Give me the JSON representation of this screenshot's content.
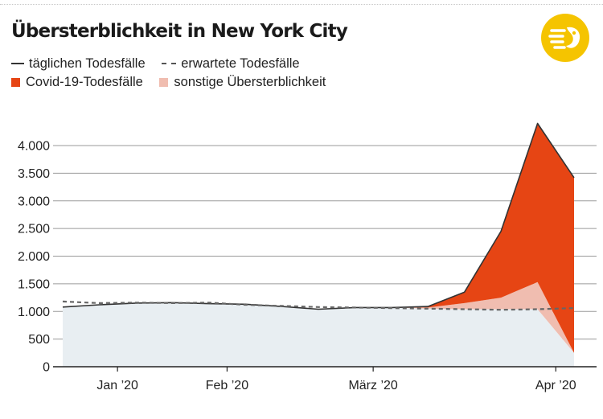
{
  "title": "Übersterblichkeit in New York City",
  "legend": {
    "actual_label": "täglichen Todesfälle",
    "expected_label": "erwartete Todesfälle",
    "covid_label": "Covid-19-Todesfälle",
    "other_label": "sonstige Übersterblichkeit"
  },
  "logo_icon": "publisher-logo-icon",
  "colors": {
    "covid": "#e64514",
    "other": "#f0bdb0",
    "base": "#e8eef2",
    "actual_line": "#333333",
    "expected_line": "#666666",
    "logo": "#f5c400"
  },
  "chart_data": {
    "type": "area",
    "title": "Übersterblichkeit in New York City",
    "xlabel": "",
    "ylabel": "",
    "ylim": [
      0,
      4000
    ],
    "y_ticks": [
      0,
      500,
      1000,
      1500,
      2000,
      2500,
      3000,
      3500,
      4000
    ],
    "y_tick_labels": [
      "0",
      "500",
      "1.000",
      "1.500",
      "2.000",
      "2.500",
      "3.000",
      "3.500",
      "4.000"
    ],
    "x_tick_labels": [
      "Jan ’20",
      "Feb ’20",
      "März ’20",
      "Apr ’20"
    ],
    "x_tick_positions": [
      1.5,
      4.5,
      8.5,
      13.5
    ],
    "grid": "horizontal",
    "x": [
      0,
      1,
      2,
      3,
      4,
      5,
      6,
      7,
      8,
      9,
      10,
      11,
      12,
      13,
      14
    ],
    "series": [
      {
        "name": "täglichen Todesfälle",
        "values": [
          1080,
          1120,
          1150,
          1160,
          1140,
          1130,
          1090,
          1040,
          1070,
          1070,
          1090,
          1350,
          2450,
          4400,
          3420
        ]
      },
      {
        "name": "erwartete Todesfälle",
        "values": [
          1180,
          1150,
          1160,
          1150,
          1160,
          1120,
          1100,
          1080,
          1070,
          1060,
          1050,
          1040,
          1030,
          1040,
          1060
        ]
      },
      {
        "name": "Covid-19-Todesfälle",
        "values": [
          0,
          0,
          0,
          0,
          0,
          0,
          0,
          0,
          0,
          0,
          20,
          200,
          1200,
          2870,
          3170
        ]
      },
      {
        "name": "sonstige Übersterblichkeit",
        "values": [
          0,
          0,
          0,
          0,
          0,
          0,
          0,
          0,
          0,
          0,
          20,
          110,
          210,
          490,
          0
        ]
      }
    ]
  }
}
